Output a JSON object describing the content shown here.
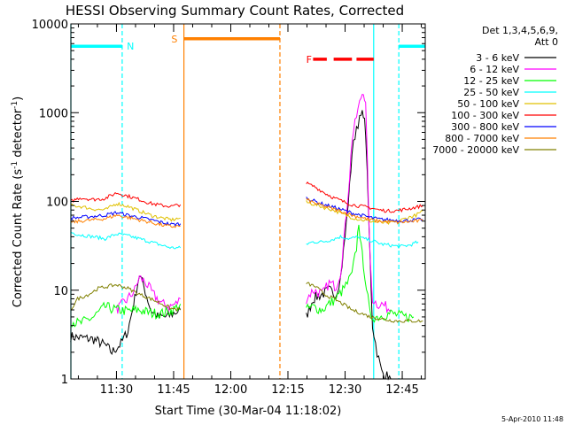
{
  "chart_data": {
    "type": "line",
    "title": "HESSI Observing Summary Count Rates, Corrected",
    "xlabel": "Start Time (30-Mar-04 11:18:02)",
    "ylabel_main": "Corrected Count Rate (s",
    "ylabel_sup": "-1",
    "ylabel_mid": " detector",
    "ylabel_sup2": "-1",
    "ylabel_end": ")",
    "footer": "5-Apr-2010 11:48",
    "yscale": "log",
    "xlim": [
      11.3006,
      12.8506
    ],
    "ylim": [
      1,
      10000
    ],
    "x_ticks": [
      {
        "x": 11.5,
        "label": "11:30"
      },
      {
        "x": 11.75,
        "label": "11:45"
      },
      {
        "x": 12.0,
        "label": "12:00"
      },
      {
        "x": 12.25,
        "label": "12:15"
      },
      {
        "x": 12.5,
        "label": "12:30"
      },
      {
        "x": 12.75,
        "label": "12:45"
      }
    ],
    "y_ticks": [
      {
        "y": 1,
        "label": "1"
      },
      {
        "y": 10,
        "label": "10"
      },
      {
        "y": 100,
        "label": "100"
      },
      {
        "y": 1000,
        "label": "1000"
      },
      {
        "y": 10000,
        "label": "10000"
      }
    ],
    "legend": {
      "header_1": "Det 1,3,4,5,6,9,",
      "header_2": "Att 0",
      "placement": "right"
    },
    "series": [
      {
        "name": "3 - 6 keV",
        "color": "#000000",
        "points": [
          [
            11.3,
            3.0
          ],
          [
            11.4,
            2.8
          ],
          [
            11.45,
            2.4
          ],
          [
            11.48,
            2.0
          ],
          [
            11.52,
            2.5
          ],
          [
            11.55,
            3.5
          ],
          [
            11.58,
            8
          ],
          [
            11.6,
            15
          ],
          [
            11.62,
            11
          ],
          [
            11.65,
            6
          ],
          [
            11.68,
            5
          ],
          [
            11.72,
            5
          ],
          [
            11.75,
            5.5
          ],
          [
            11.78,
            6
          ]
        ],
        "points_b": [
          [
            12.33,
            5
          ],
          [
            12.36,
            8
          ],
          [
            12.4,
            9
          ],
          [
            12.43,
            10
          ],
          [
            12.46,
            9
          ],
          [
            12.48,
            14
          ],
          [
            12.5,
            40
          ],
          [
            12.52,
            150
          ],
          [
            12.53,
            350
          ],
          [
            12.55,
            700
          ],
          [
            12.57,
            900
          ],
          [
            12.58,
            1000
          ],
          [
            12.59,
            600
          ],
          [
            12.61,
            20
          ],
          [
            12.62,
            4
          ],
          [
            12.64,
            2.0
          ],
          [
            12.66,
            1.2
          ],
          [
            12.7,
            1.0
          ]
        ]
      },
      {
        "name": "6 - 12 keV",
        "color": "#ff00ff",
        "points": [
          [
            11.5,
            6
          ],
          [
            11.55,
            8
          ],
          [
            11.58,
            10
          ],
          [
            11.6,
            14
          ],
          [
            11.63,
            12
          ],
          [
            11.66,
            9
          ],
          [
            11.7,
            7
          ],
          [
            11.73,
            6.5
          ],
          [
            11.76,
            7
          ],
          [
            11.78,
            8
          ]
        ],
        "points_b": [
          [
            12.33,
            8
          ],
          [
            12.36,
            10
          ],
          [
            12.4,
            9
          ],
          [
            12.43,
            12
          ],
          [
            12.46,
            11
          ],
          [
            12.48,
            16
          ],
          [
            12.5,
            50
          ],
          [
            12.52,
            200
          ],
          [
            12.53,
            500
          ],
          [
            12.55,
            900
          ],
          [
            12.57,
            1500
          ],
          [
            12.58,
            1800
          ],
          [
            12.59,
            1200
          ],
          [
            12.61,
            20
          ],
          [
            12.62,
            8
          ],
          [
            12.64,
            7
          ],
          [
            12.66,
            7
          ],
          [
            12.7,
            6
          ]
        ]
      },
      {
        "name": "12 - 25 keV",
        "color": "#00ff00",
        "points": [
          [
            11.3,
            4.5
          ],
          [
            11.34,
            4.2
          ],
          [
            11.4,
            5
          ],
          [
            11.45,
            6.5
          ],
          [
            11.5,
            6
          ],
          [
            11.55,
            5.8
          ],
          [
            11.6,
            6
          ],
          [
            11.65,
            5.5
          ],
          [
            11.7,
            5.5
          ],
          [
            11.75,
            6
          ],
          [
            11.78,
            7
          ]
        ],
        "points_b": [
          [
            12.33,
            6
          ],
          [
            12.36,
            6.5
          ],
          [
            12.4,
            6
          ],
          [
            12.43,
            7
          ],
          [
            12.46,
            8
          ],
          [
            12.49,
            10
          ],
          [
            12.51,
            12
          ],
          [
            12.53,
            15
          ],
          [
            12.55,
            30
          ],
          [
            12.56,
            60
          ],
          [
            12.57,
            30
          ],
          [
            12.58,
            20
          ],
          [
            12.6,
            8
          ],
          [
            12.61,
            5
          ],
          [
            12.64,
            5
          ],
          [
            12.7,
            5.5
          ],
          [
            12.76,
            5
          ],
          [
            12.8,
            5
          ]
        ]
      },
      {
        "name": "25 - 50 keV",
        "color": "#00ffff",
        "points": [
          [
            11.3,
            45
          ],
          [
            11.34,
            42
          ],
          [
            11.4,
            40
          ],
          [
            11.45,
            38
          ],
          [
            11.5,
            43
          ],
          [
            11.55,
            41
          ],
          [
            11.6,
            38
          ],
          [
            11.65,
            35
          ],
          [
            11.7,
            32
          ],
          [
            11.74,
            30
          ],
          [
            11.78,
            30
          ]
        ],
        "points_b": [
          [
            12.33,
            33
          ],
          [
            12.36,
            35
          ],
          [
            12.4,
            35
          ],
          [
            12.44,
            37
          ],
          [
            12.48,
            40
          ],
          [
            12.52,
            38
          ],
          [
            12.56,
            40
          ],
          [
            12.58,
            38
          ],
          [
            12.62,
            36
          ],
          [
            12.66,
            33
          ],
          [
            12.7,
            32
          ],
          [
            12.74,
            31
          ],
          [
            12.78,
            32
          ],
          [
            12.82,
            35
          ]
        ]
      },
      {
        "name": "50 - 100 keV",
        "color": "#e0c000",
        "points": [
          [
            11.3,
            90
          ],
          [
            11.34,
            88
          ],
          [
            11.4,
            82
          ],
          [
            11.45,
            80
          ],
          [
            11.5,
            95
          ],
          [
            11.55,
            88
          ],
          [
            11.6,
            78
          ],
          [
            11.65,
            70
          ],
          [
            11.7,
            65
          ],
          [
            11.74,
            62
          ],
          [
            11.78,
            65
          ]
        ],
        "points_b": [
          [
            12.33,
            98
          ],
          [
            12.37,
            92
          ],
          [
            12.41,
            85
          ],
          [
            12.45,
            80
          ],
          [
            12.49,
            72
          ],
          [
            12.53,
            66
          ],
          [
            12.57,
            62
          ],
          [
            12.61,
            60
          ],
          [
            12.65,
            58
          ],
          [
            12.69,
            57
          ],
          [
            12.73,
            60
          ],
          [
            12.77,
            65
          ],
          [
            12.81,
            70
          ],
          [
            12.84,
            78
          ]
        ]
      },
      {
        "name": "100 - 300 keV",
        "color": "#ff0000",
        "points": [
          [
            11.3,
            100
          ],
          [
            11.34,
            110
          ],
          [
            11.4,
            105
          ],
          [
            11.45,
            108
          ],
          [
            11.5,
            125
          ],
          [
            11.55,
            115
          ],
          [
            11.6,
            105
          ],
          [
            11.65,
            95
          ],
          [
            11.7,
            90
          ],
          [
            11.74,
            88
          ],
          [
            11.78,
            92
          ]
        ],
        "points_b": [
          [
            12.33,
            160
          ],
          [
            12.37,
            145
          ],
          [
            12.41,
            125
          ],
          [
            12.45,
            110
          ],
          [
            12.49,
            100
          ],
          [
            12.53,
            92
          ],
          [
            12.57,
            88
          ],
          [
            12.61,
            85
          ],
          [
            12.65,
            80
          ],
          [
            12.69,
            78
          ],
          [
            12.73,
            79
          ],
          [
            12.77,
            82
          ],
          [
            12.81,
            86
          ],
          [
            12.84,
            90
          ]
        ]
      },
      {
        "name": "300 - 800 keV",
        "color": "#0000ff",
        "points": [
          [
            11.3,
            65
          ],
          [
            11.34,
            66
          ],
          [
            11.4,
            68
          ],
          [
            11.45,
            70
          ],
          [
            11.5,
            75
          ],
          [
            11.55,
            70
          ],
          [
            11.6,
            66
          ],
          [
            11.65,
            62
          ],
          [
            11.7,
            58
          ],
          [
            11.74,
            55
          ],
          [
            11.78,
            56
          ]
        ],
        "points_b": [
          [
            12.33,
            110
          ],
          [
            12.37,
            100
          ],
          [
            12.41,
            92
          ],
          [
            12.45,
            86
          ],
          [
            12.49,
            80
          ],
          [
            12.53,
            74
          ],
          [
            12.57,
            70
          ],
          [
            12.61,
            66
          ],
          [
            12.65,
            63
          ],
          [
            12.69,
            62
          ],
          [
            12.73,
            61
          ],
          [
            12.77,
            61
          ],
          [
            12.81,
            62
          ],
          [
            12.84,
            63
          ]
        ]
      },
      {
        "name": "800 - 7000 keV",
        "color": "#ff8000",
        "points": [
          [
            11.3,
            58
          ],
          [
            11.34,
            60
          ],
          [
            11.4,
            62
          ],
          [
            11.45,
            64
          ],
          [
            11.5,
            70
          ],
          [
            11.55,
            66
          ],
          [
            11.6,
            62
          ],
          [
            11.65,
            58
          ],
          [
            11.7,
            54
          ],
          [
            11.74,
            52
          ],
          [
            11.78,
            53
          ]
        ],
        "points_b": [
          [
            12.33,
            105
          ],
          [
            12.37,
            95
          ],
          [
            12.41,
            88
          ],
          [
            12.45,
            82
          ],
          [
            12.49,
            76
          ],
          [
            12.53,
            70
          ],
          [
            12.57,
            66
          ],
          [
            12.61,
            62
          ],
          [
            12.65,
            60
          ],
          [
            12.69,
            59
          ],
          [
            12.73,
            58
          ],
          [
            12.77,
            59
          ],
          [
            12.81,
            60
          ],
          [
            12.84,
            61
          ]
        ]
      },
      {
        "name": "7000 - 20000 keV",
        "color": "#808000",
        "points": [
          [
            11.3,
            6
          ],
          [
            11.33,
            8
          ],
          [
            11.38,
            9
          ],
          [
            11.42,
            10.5
          ],
          [
            11.46,
            11
          ],
          [
            11.5,
            11.5
          ],
          [
            11.55,
            10.5
          ],
          [
            11.6,
            9
          ],
          [
            11.65,
            8
          ],
          [
            11.7,
            7
          ],
          [
            11.74,
            6.2
          ],
          [
            11.78,
            6
          ]
        ],
        "points_b": [
          [
            12.33,
            12
          ],
          [
            12.37,
            11
          ],
          [
            12.41,
            9
          ],
          [
            12.45,
            8
          ],
          [
            12.49,
            7
          ],
          [
            12.53,
            6
          ],
          [
            12.57,
            5.5
          ],
          [
            12.61,
            5
          ],
          [
            12.65,
            4.8
          ],
          [
            12.69,
            4.6
          ],
          [
            12.73,
            4.5
          ],
          [
            12.77,
            4.5
          ],
          [
            12.81,
            4.5
          ],
          [
            12.84,
            4.5
          ]
        ]
      }
    ],
    "mode_bars": [
      {
        "label": "N",
        "color": "#00ffff",
        "y": 5600,
        "segments": [
          [
            11.3006,
            11.525
          ],
          [
            12.735,
            12.8506
          ]
        ],
        "dashed_x": [
          11.525,
          12.735
        ],
        "label_x": 11.545
      },
      {
        "label": "S",
        "color": "#ff8000",
        "y": 6800,
        "segments": [
          [
            11.795,
            12.215
          ]
        ],
        "solid_x": [
          11.795
        ],
        "dashed_x": [
          12.215
        ],
        "label_x": 11.74
      },
      {
        "label": "F",
        "color": "#ff0000",
        "y": 4000,
        "segments": [
          [
            12.36,
            12.42
          ],
          [
            12.45,
            12.53
          ],
          [
            12.55,
            12.625
          ]
        ],
        "label_x": 12.33
      }
    ],
    "vlines": [
      {
        "x": 11.795,
        "color": "#ff8000",
        "style": "solid"
      },
      {
        "x": 12.215,
        "color": "#ff8000",
        "style": "dashed"
      },
      {
        "x": 11.525,
        "color": "#00ffff",
        "style": "dashed"
      },
      {
        "x": 12.625,
        "color": "#00ffff",
        "style": "solid"
      },
      {
        "x": 12.735,
        "color": "#00ffff",
        "style": "dashed"
      },
      {
        "x": 11.3006,
        "color": "#00ffff",
        "style": "solid"
      }
    ]
  }
}
